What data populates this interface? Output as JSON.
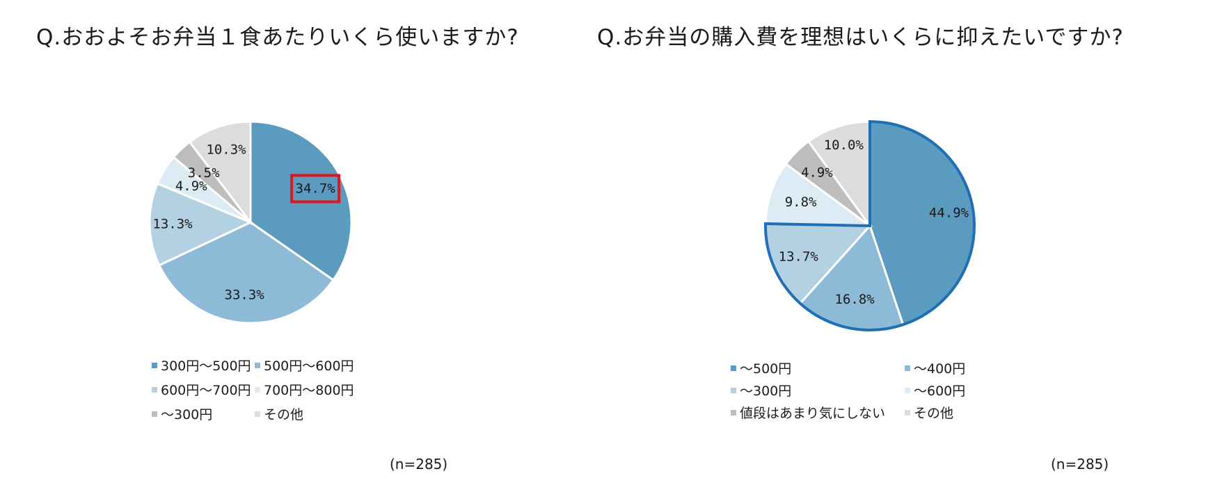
{
  "chart_data": [
    {
      "type": "pie",
      "title": "Q.おおよそお弁当１食あたりいくら使いますか?",
      "note": "(n=285)",
      "slices": [
        {
          "label": "300円～500円",
          "value": 34.7,
          "value_label": "34.7%",
          "color": "#5b9bbf"
        },
        {
          "label": "500円～600円",
          "value": 33.3,
          "value_label": "33.3%",
          "color": "#8dbad6"
        },
        {
          "label": "600円～700円",
          "value": 13.3,
          "value_label": "13.3%",
          "color": "#b3d1e3"
        },
        {
          "label": "700円～800円",
          "value": 4.9,
          "value_label": "4.9%",
          "color": "#dcebf4"
        },
        {
          "label": "～300円",
          "value": 3.5,
          "value_label": "3.5%",
          "color": "#bdbdbd"
        },
        {
          "label": "その他",
          "value": 10.3,
          "value_label": "10.3%",
          "color": "#dcdcdc"
        }
      ],
      "highlight": {
        "slice": "300円～500円",
        "style": "red box around value label",
        "color": "#e0161e"
      },
      "legend_position": "bottom"
    },
    {
      "type": "pie",
      "title": "Q.お弁当の購入費を理想はいくらに抑えたいですか?",
      "note": "(n=285)",
      "slices": [
        {
          "label": "～500円",
          "value": 44.9,
          "value_label": "44.9%",
          "color": "#5b9bbf"
        },
        {
          "label": "～400円",
          "value": 16.8,
          "value_label": "16.8%",
          "color": "#8dbad6"
        },
        {
          "label": "～300円",
          "value": 13.7,
          "value_label": "13.7%",
          "color": "#b3d1e3"
        },
        {
          "label": "～600円",
          "value": 9.8,
          "value_label": "9.8%",
          "color": "#dcebf4"
        },
        {
          "label": "値段はあまり気にしない",
          "value": 4.9,
          "value_label": "4.9%",
          "color": "#bdbdbd"
        },
        {
          "label": "その他",
          "value": 10.0,
          "value_label": "10.0%",
          "color": "#dcdcdc"
        }
      ],
      "highlight": {
        "slices": [
          "～500円",
          "～400円",
          "～300円"
        ],
        "style": "blue outline around slices",
        "color": "#1f6fb5"
      },
      "legend_position": "bottom"
    }
  ]
}
